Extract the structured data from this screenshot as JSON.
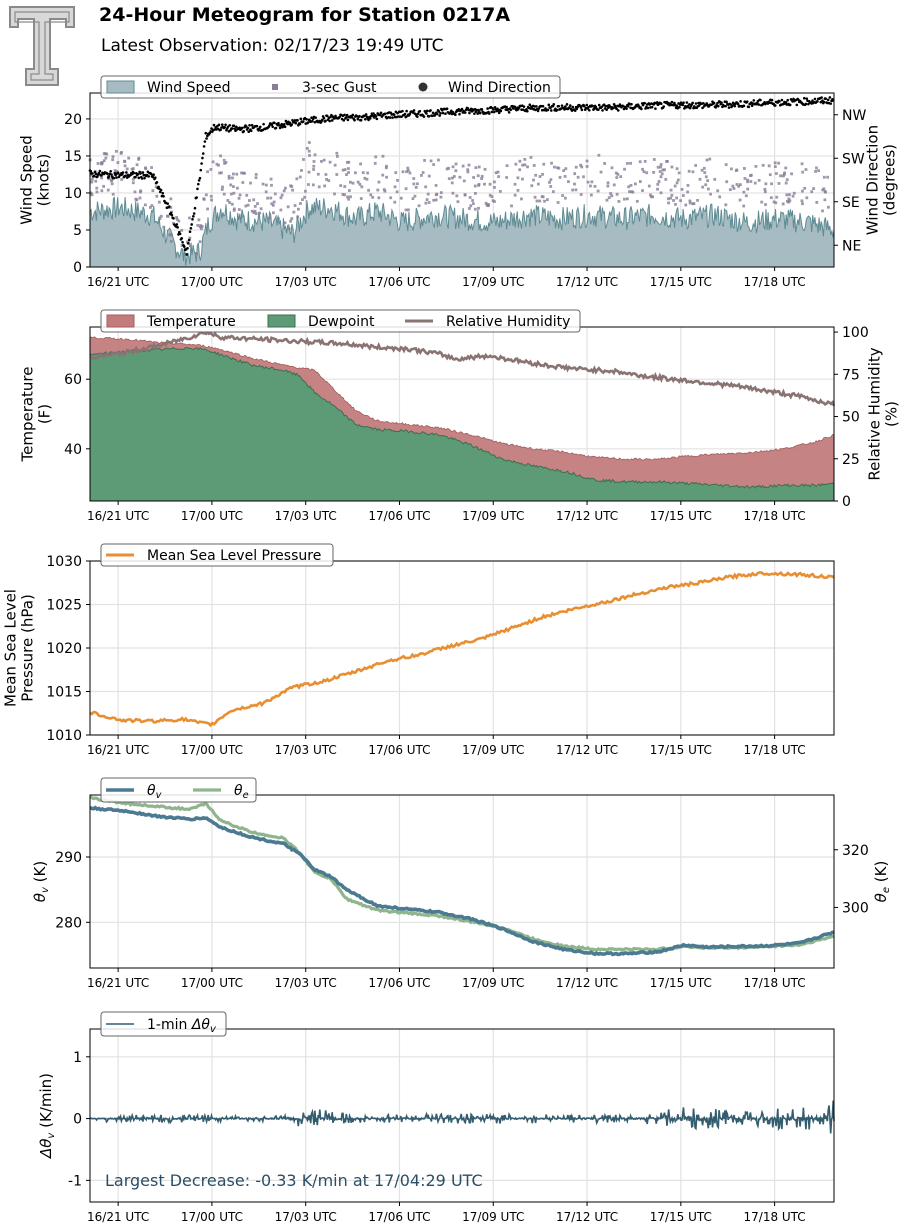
{
  "header": {
    "title": "24-Hour Meteogram for Station 0217A",
    "subtitle": "Latest Observation: 02/17/23 19:49 UTC",
    "logo_icon": "texas-tech-double-t-logo-icon"
  },
  "colors": {
    "wind_speed_fill": "#a6bcc2",
    "wind_speed_line": "#5e8b93",
    "gust": "#8a7d97",
    "direction": "#000000",
    "temperature": "#c27c7c",
    "dewpoint": "#5d9b76",
    "humidity": "#8a7373",
    "pressure": "#e88e33",
    "theta_v": "#4b7a91",
    "theta_e": "#8fb58f",
    "delta_theta": "#335c6e",
    "annotation": "#2a4e66"
  },
  "chart_data": [
    {
      "type": "area",
      "x_ticks": [
        "16/21 UTC",
        "17/00 UTC",
        "17/03 UTC",
        "17/06 UTC",
        "17/09 UTC",
        "17/12 UTC",
        "17/15 UTC",
        "17/18 UTC"
      ],
      "x_tick_hours": [
        0.2,
        3.2,
        6.2,
        9.2,
        12.2,
        15.2,
        18.2,
        21.2
      ],
      "xlim": [
        -0.7,
        23.1
      ],
      "ylabel": "Wind Speed\n(knots)",
      "ylabel2": "Wind Direction\n(degrees)",
      "ylim": [
        0,
        23.5
      ],
      "y_ticks": [
        0,
        5,
        10,
        15,
        20
      ],
      "y2_ticks": [
        "NE",
        "SE",
        "SW",
        "NW"
      ],
      "y2_tick_degrees": [
        45,
        135,
        225,
        315
      ],
      "y2lim": [
        0,
        360
      ],
      "legend": [
        "Wind Speed",
        "3-sec Gust",
        "Wind Direction"
      ],
      "series": [
        {
          "name": "Wind Speed",
          "x": [
            -0.7,
            0.3,
            1.3,
            1.8,
            2.3,
            2.8,
            3.1,
            3.5,
            4.0,
            5.0,
            5.8,
            6.3,
            7.0,
            7.8,
            8.5,
            9.3,
            10.3,
            11.3,
            12.3,
            13.3,
            14.3,
            15.3,
            16.3,
            17.3,
            18.3,
            19.3,
            20.3,
            21.3,
            22.3,
            23.1
          ],
          "values": [
            7.5,
            8,
            7,
            4,
            1.5,
            2,
            6,
            8,
            6.5,
            6,
            4.5,
            8,
            8,
            6.5,
            7.5,
            6,
            7,
            6.5,
            6,
            7,
            6.5,
            7,
            6.5,
            7,
            6.5,
            7,
            6,
            6.5,
            6,
            5
          ]
        },
        {
          "name": "3-sec Gust",
          "x": [
            -0.7,
            0.3,
            1.3,
            1.8,
            2.3,
            2.8,
            3.1,
            3.5,
            4.0,
            5.0,
            5.8,
            6.3,
            7.0,
            7.8,
            8.5,
            9.3,
            10.3,
            11.3,
            12.3,
            13.3,
            14.3,
            15.3,
            16.3,
            17.3,
            18.3,
            19.3,
            20.3,
            21.3,
            22.3,
            23.1
          ],
          "values": [
            11,
            12,
            10,
            6,
            3,
            4,
            10,
            12,
            9,
            8.5,
            7,
            13,
            12,
            10,
            11.5,
            9.5,
            11,
            10,
            9.5,
            11,
            10.5,
            11.5,
            10.5,
            11,
            10,
            11,
            9.5,
            10.5,
            10,
            9
          ]
        },
        {
          "name": "Wind Direction",
          "x": [
            -0.7,
            0.3,
            1.3,
            1.9,
            2.4,
            2.8,
            3.0,
            3.3,
            4.0,
            5.0,
            6.0,
            7.0,
            8.0,
            9.0,
            10.0,
            11.0,
            12.0,
            13.0,
            14.0,
            15.0,
            16.0,
            17.0,
            18.0,
            19.0,
            20.0,
            21.0,
            22.0,
            23.1
          ],
          "values": [
            193,
            190,
            190,
            110,
            30,
            180,
            270,
            290,
            285,
            290,
            300,
            308,
            310,
            315,
            318,
            322,
            324,
            328,
            330,
            330,
            330,
            333,
            335,
            335,
            337,
            340,
            342,
            345
          ]
        }
      ]
    },
    {
      "type": "area",
      "x_ticks": [
        "16/21 UTC",
        "17/00 UTC",
        "17/03 UTC",
        "17/06 UTC",
        "17/09 UTC",
        "17/12 UTC",
        "17/15 UTC",
        "17/18 UTC"
      ],
      "x_tick_hours": [
        0.2,
        3.2,
        6.2,
        9.2,
        12.2,
        15.2,
        18.2,
        21.2
      ],
      "xlim": [
        -0.7,
        23.1
      ],
      "ylabel": "Temperature\n(F)",
      "ylabel2": "Relative Humidity\n(%)",
      "ylim": [
        25,
        75
      ],
      "y_ticks": [
        40,
        60
      ],
      "y2lim": [
        0,
        103
      ],
      "y2_ticks": [
        0,
        25,
        50,
        75,
        100
      ],
      "legend": [
        "Temperature",
        "Dewpoint",
        "Relative Humidity"
      ],
      "series": [
        {
          "name": "Temperature",
          "x": [
            -0.7,
            0.5,
            1.5,
            2.5,
            3.0,
            3.5,
            4.5,
            5.5,
            6.5,
            7.0,
            7.8,
            8.5,
            9.5,
            10.5,
            11.5,
            12.5,
            13.5,
            14.5,
            15.5,
            16.5,
            17.5,
            18.5,
            19.5,
            20.5,
            21.5,
            22.5,
            23.1
          ],
          "values": [
            72,
            71.5,
            70.5,
            70,
            69.5,
            68.5,
            66,
            64,
            62.5,
            58,
            51,
            48,
            47,
            46,
            44,
            41.5,
            40,
            39,
            37.5,
            37,
            37,
            38,
            38.5,
            39,
            40,
            42,
            44
          ]
        },
        {
          "name": "Dewpoint",
          "x": [
            -0.7,
            0.5,
            1.5,
            2.5,
            3.0,
            3.5,
            4.5,
            5.5,
            6.0,
            6.5,
            7.0,
            7.8,
            8.5,
            9.5,
            10.5,
            11.5,
            12.5,
            13.5,
            14.5,
            15.5,
            16.5,
            17.5,
            18.5,
            19.5,
            20.5,
            21.5,
            22.5,
            23.1
          ],
          "values": [
            67,
            68,
            68.5,
            69,
            68.5,
            67,
            64,
            62.5,
            61,
            56,
            53,
            47,
            45.5,
            45,
            44,
            41,
            37,
            35,
            33.5,
            31,
            30.5,
            30.5,
            30,
            29.5,
            29,
            29.5,
            29.5,
            30
          ]
        },
        {
          "name": "Relative Humidity",
          "x": [
            -0.7,
            0.5,
            1.5,
            2.5,
            3.0,
            3.5,
            4.5,
            5.5,
            6.5,
            7.5,
            8.5,
            9.5,
            10.5,
            11.0,
            12.0,
            13.0,
            14.0,
            15.0,
            16.0,
            17.0,
            18.0,
            19.0,
            20.0,
            21.0,
            22.0,
            23.1
          ],
          "values": [
            85,
            88,
            92,
            97,
            100,
            97,
            96,
            95,
            94,
            93,
            91,
            90,
            87,
            84,
            86,
            83,
            80,
            78,
            77,
            74,
            72,
            70,
            68,
            65,
            62,
            57
          ]
        }
      ]
    },
    {
      "type": "line",
      "x_ticks": [
        "16/21 UTC",
        "17/00 UTC",
        "17/03 UTC",
        "17/06 UTC",
        "17/09 UTC",
        "17/12 UTC",
        "17/15 UTC",
        "17/18 UTC"
      ],
      "x_tick_hours": [
        0.2,
        3.2,
        6.2,
        9.2,
        12.2,
        15.2,
        18.2,
        21.2
      ],
      "xlim": [
        -0.7,
        23.1
      ],
      "ylabel": "Mean Sea Level\nPressure (hPa)",
      "ylim": [
        1010,
        1030
      ],
      "y_ticks": [
        1010,
        1015,
        1020,
        1025,
        1030
      ],
      "legend": [
        "Mean Sea Level Pressure"
      ],
      "series": [
        {
          "name": "Mean Sea Level Pressure",
          "x": [
            -0.7,
            0.3,
            1.3,
            2.3,
            2.8,
            3.2,
            3.8,
            4.8,
            5.8,
            6.8,
            7.8,
            8.8,
            9.8,
            10.8,
            11.8,
            12.8,
            13.8,
            14.8,
            15.8,
            16.8,
            17.8,
            18.8,
            19.8,
            20.8,
            21.8,
            22.5,
            23.1
          ],
          "values": [
            1012.6,
            1011.7,
            1011.6,
            1011.8,
            1011.4,
            1011.2,
            1012.8,
            1013.6,
            1015.5,
            1016.2,
            1017.3,
            1018.5,
            1019.2,
            1020.2,
            1021.0,
            1022.3,
            1023.6,
            1024.5,
            1025.3,
            1026.2,
            1027.0,
            1027.5,
            1028.2,
            1028.6,
            1028.5,
            1028.3,
            1028.1
          ]
        }
      ]
    },
    {
      "type": "line",
      "x_ticks": [
        "16/21 UTC",
        "17/00 UTC",
        "17/03 UTC",
        "17/06 UTC",
        "17/09 UTC",
        "17/12 UTC",
        "17/15 UTC",
        "17/18 UTC"
      ],
      "x_tick_hours": [
        0.2,
        3.2,
        6.2,
        9.2,
        12.2,
        15.2,
        18.2,
        21.2
      ],
      "xlim": [
        -0.7,
        23.1
      ],
      "ylabel": "θv (K)",
      "ylabel2": "θe (K)",
      "ylim": [
        273,
        299.5
      ],
      "y_ticks": [
        280,
        290
      ],
      "y2lim": [
        279,
        339
      ],
      "y2_ticks": [
        300,
        320
      ],
      "legend": [
        "θv",
        "θe"
      ],
      "series": [
        {
          "name": "θv",
          "x": [
            -0.7,
            0.5,
            1.5,
            2.5,
            3.0,
            3.5,
            4.5,
            5.5,
            6.0,
            6.5,
            7.0,
            7.5,
            8.5,
            9.5,
            10.5,
            11.5,
            12.5,
            13.5,
            14.5,
            15.5,
            16.5,
            17.5,
            18.3,
            19.0,
            20.0,
            21.0,
            22.0,
            23.1
          ],
          "values": [
            297.5,
            297,
            296.2,
            295.8,
            296,
            294.5,
            293,
            292,
            290.5,
            288,
            287,
            285,
            282.5,
            282,
            281.5,
            280.5,
            279,
            277,
            275.8,
            275.2,
            275.2,
            275.5,
            276.5,
            276.2,
            276.3,
            276.4,
            276.8,
            278.5
          ]
        },
        {
          "name": "θe",
          "x": [
            -0.7,
            0.5,
            1.5,
            2.5,
            3.0,
            3.5,
            4.5,
            5.5,
            6.0,
            6.5,
            7.0,
            7.5,
            8.5,
            9.5,
            10.5,
            11.5,
            12.5,
            13.5,
            14.5,
            15.5,
            16.5,
            17.5,
            18.3,
            19.0,
            20.0,
            21.0,
            22.0,
            23.1
          ],
          "values": [
            338,
            336,
            335,
            334,
            336,
            330,
            326,
            324,
            319,
            312,
            310,
            303,
            299,
            298,
            297,
            295,
            293,
            289,
            286.5,
            285.5,
            285.5,
            285.5,
            286.5,
            286,
            286,
            286.5,
            287,
            290
          ]
        }
      ]
    },
    {
      "type": "line",
      "x_ticks": [
        "16/21 UTC",
        "17/00 UTC",
        "17/03 UTC",
        "17/06 UTC",
        "17/09 UTC",
        "17/12 UTC",
        "17/15 UTC",
        "17/18 UTC"
      ],
      "x_tick_hours": [
        0.2,
        3.2,
        6.2,
        9.2,
        12.2,
        15.2,
        18.2,
        21.2
      ],
      "xlim": [
        -0.7,
        23.1
      ],
      "ylabel": "Δθv (K/min)",
      "ylim": [
        -1.35,
        1.45
      ],
      "y_ticks": [
        -1,
        0,
        1
      ],
      "legend": [
        "1-min Δθv"
      ],
      "annotation": "Largest Decrease: -0.33 K/min at 17/04:29 UTC",
      "series": [
        {
          "name": "1-min Δθv",
          "x": [
            -0.7,
            1.0,
            2.5,
            4.0,
            5.5,
            6.3,
            7.3,
            8.5,
            10.0,
            11.5,
            13.0,
            14.5,
            16.0,
            17.0,
            17.7,
            18.5,
            19.5,
            20.5,
            21.5,
            22.5,
            23.1
          ],
          "amplitude": [
            0.05,
            0.06,
            0.07,
            0.04,
            0.05,
            0.18,
            0.1,
            0.06,
            0.08,
            0.08,
            0.08,
            0.07,
            0.07,
            0.08,
            0.15,
            0.2,
            0.15,
            0.12,
            0.18,
            0.25,
            0.3
          ]
        }
      ]
    }
  ]
}
